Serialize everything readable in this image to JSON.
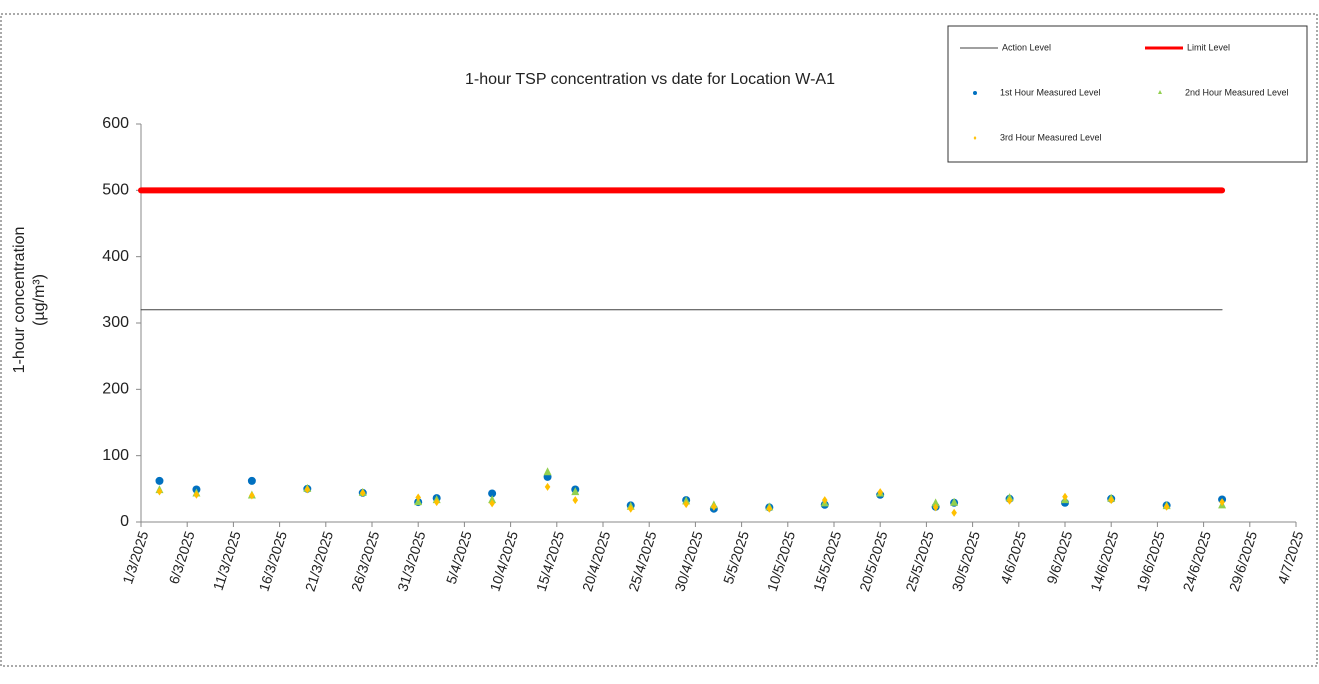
{
  "chart_data": {
    "type": "scatter",
    "title": "1-hour TSP concentration vs date for Location W-A1",
    "y_label": [
      "1-hour concentration",
      "(µg/m³)"
    ],
    "xlim": [
      "1/3/2025",
      "4/7/2025"
    ],
    "xticks": [
      "1/3/2025",
      "6/3/2025",
      "11/3/2025",
      "16/3/2025",
      "21/3/2025",
      "26/3/2025",
      "31/3/2025",
      "5/4/2025",
      "10/4/2025",
      "15/4/2025",
      "20/4/2025",
      "25/4/2025",
      "30/4/2025",
      "5/5/2025",
      "10/5/2025",
      "15/5/2025",
      "20/5/2025",
      "25/5/2025",
      "30/5/2025",
      "4/6/2025",
      "9/6/2025",
      "14/6/2025",
      "19/6/2025",
      "24/6/2025",
      "29/6/2025",
      "4/7/2025"
    ],
    "ylim": [
      0,
      600
    ],
    "yticks": [
      0,
      100,
      200,
      300,
      400,
      500,
      600
    ],
    "x": [
      "3/3/2025",
      "7/3/2025",
      "13/3/2025",
      "19/3/2025",
      "25/3/2025",
      "31/3/2025",
      "2/4/2025",
      "8/4/2025",
      "14/4/2025",
      "17/4/2025",
      "23/4/2025",
      "29/4/2025",
      "2/5/2025",
      "8/5/2025",
      "14/5/2025",
      "20/5/2025",
      "26/5/2025",
      "28/5/2025",
      "3/6/2025",
      "9/6/2025",
      "14/6/2025",
      "20/6/2025",
      "26/6/2025"
    ],
    "series": [
      {
        "name": "1st Hour Measured Level",
        "color": "#0070c0",
        "marker": "circle",
        "values": [
          62,
          49,
          62,
          50,
          44,
          30,
          36,
          43,
          68,
          49,
          25,
          33,
          20,
          22,
          26,
          41,
          23,
          29,
          35,
          29,
          35,
          25,
          34
        ]
      },
      {
        "name": "2nd Hour Measured Level",
        "color": "#92d050",
        "marker": "triangle",
        "values": [
          48,
          43,
          40,
          50,
          44,
          30,
          33,
          33,
          75,
          45,
          23,
          31,
          25,
          22,
          28,
          43,
          28,
          29,
          36,
          33,
          35,
          24,
          25
        ]
      },
      {
        "name": "3rd Hour Measured Level",
        "color": "#ffc000",
        "marker": "diamond",
        "values": [
          46,
          41,
          40,
          49,
          44,
          37,
          30,
          28,
          53,
          33,
          20,
          27,
          23,
          20,
          33,
          45,
          22,
          14,
          32,
          38,
          33,
          23,
          30
        ]
      }
    ],
    "reference_lines": [
      {
        "name": "Action Level",
        "value": 320,
        "color": "#404040",
        "width": 1,
        "x": [
          "1/3/2025",
          "26/6/2025"
        ]
      },
      {
        "name": "Limit Level",
        "value": 500,
        "color": "#ff0000",
        "width": 6,
        "x": [
          "1/3/2025",
          "26/6/2025"
        ]
      }
    ],
    "legend": "upper right"
  }
}
